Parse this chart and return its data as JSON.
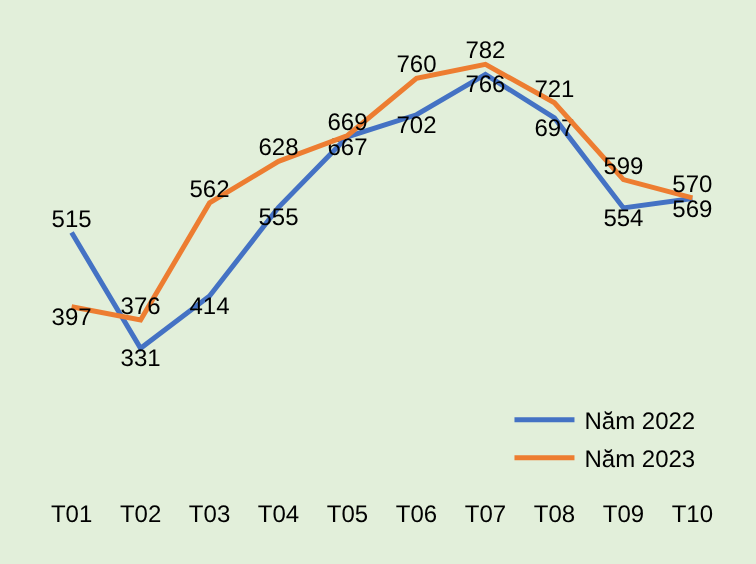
{
  "chart_data": {
    "type": "line",
    "categories": [
      "T01",
      "T02",
      "T03",
      "T04",
      "T05",
      "T06",
      "T07",
      "T08",
      "T09",
      "T10"
    ],
    "series": [
      {
        "name": "Năm 2022",
        "color": "#4472c4",
        "values": [
          515,
          331,
          414,
          555,
          667,
          702,
          766,
          697,
          554,
          569
        ]
      },
      {
        "name": "Năm 2023",
        "color": "#ed7d31",
        "values": [
          397,
          376,
          562,
          628,
          669,
          760,
          782,
          721,
          599,
          570
        ]
      }
    ],
    "data_labels": true,
    "legend": "bottom right",
    "grid": false,
    "marker": "none",
    "line_style": "solid"
  }
}
